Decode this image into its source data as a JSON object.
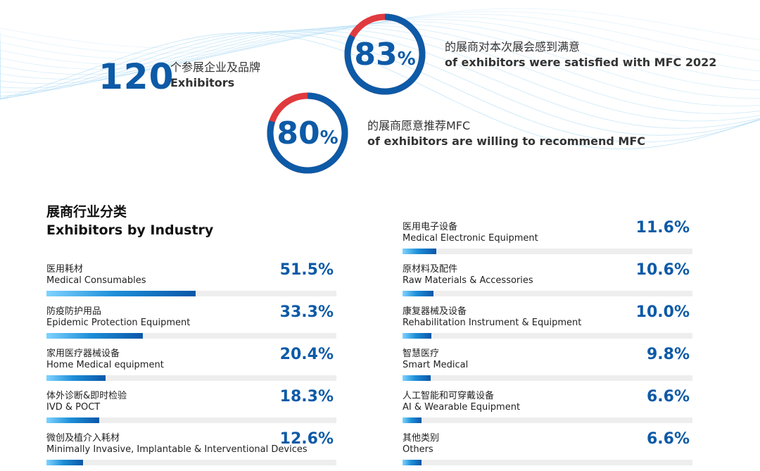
{
  "colors": {
    "accent": "#0d5aa7",
    "ring_remainder": "#e03a3e",
    "track": "#eeeeee"
  },
  "stats": {
    "exhibitors": {
      "number": "120",
      "cn": "个参展企业及品牌",
      "en": "Exhibitors"
    },
    "satisfied": {
      "number": "83",
      "percent_sign": "%",
      "value": 83,
      "cn": "的展商对本次展会感到满意",
      "en": "of exhibitors were satisfied with MFC 2022"
    },
    "recommend": {
      "number": "80",
      "percent_sign": "%",
      "value": 80,
      "cn": "的展商愿意推荐MFC",
      "en": "of exhibitors are willing to recommend MFC"
    }
  },
  "industry": {
    "title_cn": "展商行业分类",
    "title_en": "Exhibitors by Industry"
  },
  "chart_data": {
    "type": "bar",
    "orientation": "horizontal",
    "title": "Exhibitors by Industry",
    "xlim": [
      0,
      100
    ],
    "grid": false,
    "categories": [
      {
        "cn": "医用耗材",
        "en": "Medical Consumables",
        "value": 51.5,
        "label": "51.5%"
      },
      {
        "cn": "防疫防护用品",
        "en": "Epidemic Protection Equipment",
        "value": 33.3,
        "label": "33.3%"
      },
      {
        "cn": "家用医疗器械设备",
        "en": "Home Medical equipment",
        "value": 20.4,
        "label": "20.4%"
      },
      {
        "cn": "体外诊断&即时检验",
        "en": "IVD & POCT",
        "value": 18.3,
        "label": "18.3%"
      },
      {
        "cn": "微创及植介入耗材",
        "en": "Minimally Invasive, Implantable & Interventional Devices",
        "value": 12.6,
        "label": "12.6%"
      },
      {
        "cn": "医用电子设备",
        "en": "Medical Electronic Equipment",
        "value": 11.6,
        "label": "11.6%"
      },
      {
        "cn": "原材料及配件",
        "en": "Raw Materials & Accessories",
        "value": 10.6,
        "label": "10.6%"
      },
      {
        "cn": "康复器械及设备",
        "en": "Rehabilitation Instrument & Equipment",
        "value": 10.0,
        "label": "10.0%"
      },
      {
        "cn": "智慧医疗",
        "en": "Smart Medical",
        "value": 9.8,
        "label": "9.8%"
      },
      {
        "cn": "人工智能和可穿戴设备",
        "en": "AI & Wearable Equipment",
        "value": 6.6,
        "label": "6.6%"
      },
      {
        "cn": "其他类别",
        "en": "Others",
        "value": 6.6,
        "label": "6.6%"
      }
    ]
  }
}
